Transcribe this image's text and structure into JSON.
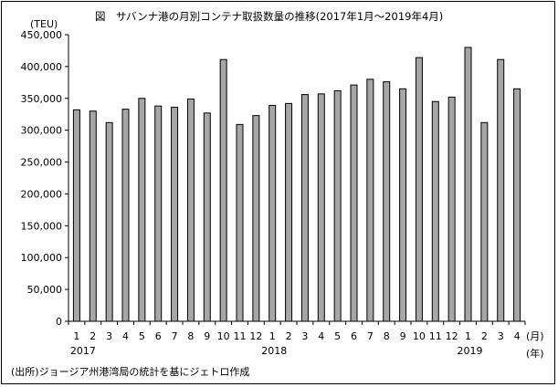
{
  "chart_data": {
    "type": "bar",
    "title": "図　サバンナ港の月別コンテナ取扱数量の推移(2017年1月～2019年4月)",
    "unit_label": "(TEU)",
    "month_suffix": "(月)",
    "year_suffix": "(年)",
    "source": "(出所)ジョージア州港湾局の統計を基にジェトロ作成",
    "ylim": [
      0,
      450000
    ],
    "y_ticks": [
      "0",
      "50,000",
      "100,000",
      "150,000",
      "200,000",
      "250,000",
      "300,000",
      "350,000",
      "400,000",
      "450,000"
    ],
    "categories": [
      "1",
      "2",
      "3",
      "4",
      "5",
      "6",
      "7",
      "8",
      "9",
      "10",
      "11",
      "12",
      "1",
      "2",
      "3",
      "4",
      "5",
      "6",
      "7",
      "8",
      "9",
      "10",
      "11",
      "12",
      "1",
      "2",
      "3",
      "4"
    ],
    "years": [
      {
        "label": "2017",
        "start_index": 0
      },
      {
        "label": "2018",
        "start_index": 12
      },
      {
        "label": "2019",
        "start_index": 24
      }
    ],
    "values": [
      332000,
      330000,
      312000,
      333000,
      350000,
      338000,
      336000,
      349000,
      327000,
      411000,
      309000,
      323000,
      339000,
      342000,
      356000,
      357000,
      362000,
      371000,
      380000,
      376000,
      365000,
      414000,
      345000,
      352000,
      430000,
      312000,
      411000,
      365000
    ],
    "bar_color": "#a6a6a6",
    "grid": false
  }
}
